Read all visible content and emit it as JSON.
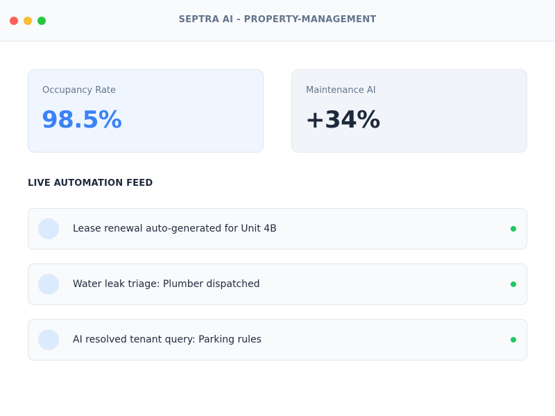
{
  "window": {
    "title": "SEPTRA AI - PROPERTY-MANAGEMENT",
    "controls": [
      "close",
      "minimize",
      "maximize"
    ]
  },
  "stats": [
    {
      "label": "Occupancy Rate",
      "value": "98.5%",
      "color": "#3b82f6"
    },
    {
      "label": "Maintenance AI",
      "value": "+34%",
      "color": "#1e293b"
    }
  ],
  "feed": {
    "title": "LIVE AUTOMATION FEED",
    "items": [
      {
        "text": "Lease renewal auto-generated for Unit 4B",
        "status_color": "#22c55e"
      },
      {
        "text": "Water leak triage: Plumber dispatched",
        "status_color": "#22c55e"
      },
      {
        "text": "AI resolved tenant query: Parking rules",
        "status_color": "#22c55e"
      }
    ]
  },
  "colors": {
    "accent": "#3b82f6",
    "status_active": "#22c55e",
    "avatar_bg": "#dbeafe"
  }
}
